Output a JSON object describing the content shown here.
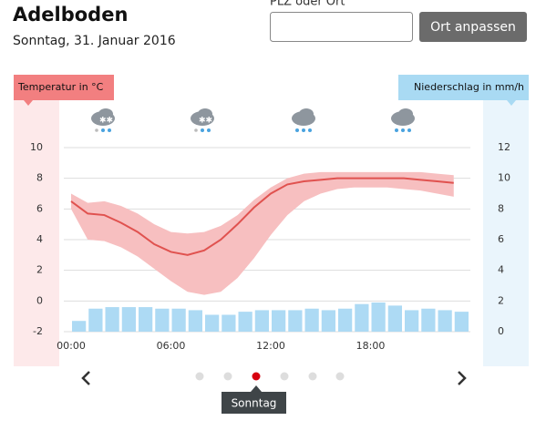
{
  "header": {
    "title": "Adelboden",
    "date": "Sonntag, 31. Januar 2016"
  },
  "form": {
    "label": "PLZ oder Ort",
    "button": "Ort anpassen"
  },
  "chart_data": {
    "type": "line",
    "ylabel": "Temperatur in °C",
    "y2label": "Niederschlag in mm/h",
    "x": [
      0,
      1,
      2,
      3,
      4,
      5,
      6,
      7,
      8,
      9,
      10,
      11,
      12,
      13,
      14,
      15,
      16,
      17,
      18,
      19,
      20,
      21,
      22,
      23
    ],
    "xlim": [
      0,
      24
    ],
    "xticks": [
      {
        "value": 0,
        "label": "00:00"
      },
      {
        "value": 6,
        "label": "06:00"
      },
      {
        "value": 12,
        "label": "12:00"
      },
      {
        "value": 18,
        "label": "18:00"
      }
    ],
    "ylim": [
      -2,
      10
    ],
    "yticks": [
      -2,
      0,
      2,
      4,
      6,
      8,
      10
    ],
    "y2lim": [
      0,
      12
    ],
    "y2ticks": [
      0,
      2,
      4,
      6,
      8,
      10,
      12
    ],
    "grid": true,
    "series": [
      {
        "color": "#e0524f",
        "band_color": "#f7bfc0",
        "values": [
          6.5,
          5.7,
          5.6,
          5.1,
          4.5,
          3.7,
          3.2,
          3.0,
          3.3,
          4.0,
          5.0,
          6.1,
          7.0,
          7.6,
          7.8,
          7.9,
          8.0,
          8.0,
          8.0,
          8.0,
          8.0,
          7.9,
          7.8,
          7.7
        ],
        "upper": [
          7.0,
          6.4,
          6.5,
          6.2,
          5.7,
          5.0,
          4.5,
          4.4,
          4.5,
          4.9,
          5.6,
          6.6,
          7.4,
          8.0,
          8.3,
          8.4,
          8.4,
          8.4,
          8.4,
          8.4,
          8.4,
          8.4,
          8.3,
          8.2
        ],
        "lower": [
          6.0,
          4.0,
          3.9,
          3.5,
          2.9,
          2.1,
          1.3,
          0.6,
          0.4,
          0.6,
          1.5,
          2.8,
          4.3,
          5.6,
          6.5,
          7.0,
          7.3,
          7.4,
          7.4,
          7.4,
          7.3,
          7.2,
          7.0,
          6.8
        ]
      },
      {
        "type": "bar",
        "axis": "y2",
        "color": "#addaf4",
        "values": [
          0.7,
          1.5,
          1.6,
          1.6,
          1.6,
          1.5,
          1.5,
          1.4,
          1.1,
          1.1,
          1.3,
          1.4,
          1.4,
          1.4,
          1.5,
          1.4,
          1.5,
          1.8,
          1.9,
          1.7,
          1.4,
          1.5,
          1.4,
          1.3
        ]
      }
    ]
  },
  "nav": {
    "tooltip": "Sonntag"
  }
}
